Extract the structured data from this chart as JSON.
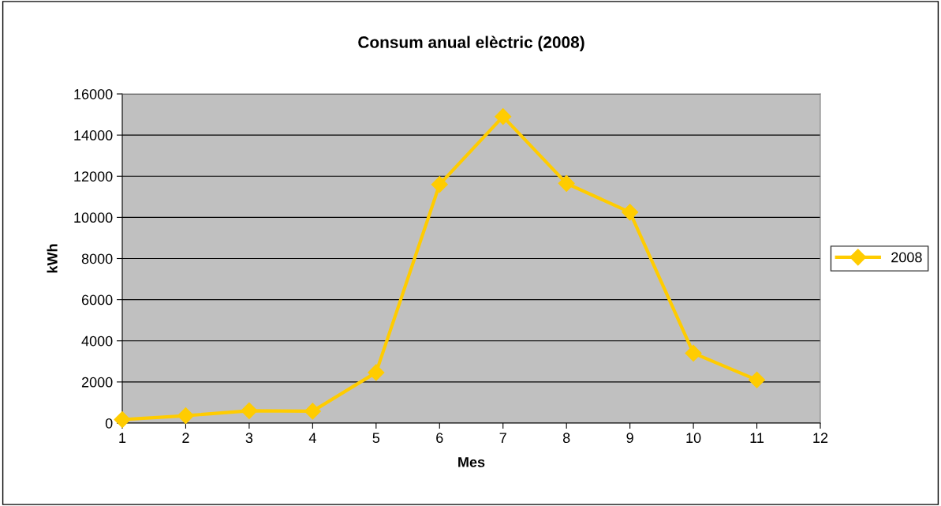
{
  "chart_data": {
    "type": "line",
    "title": "Consum anual elèctric (2008)",
    "xlabel": "Mes",
    "ylabel": "kWh",
    "x": [
      1,
      2,
      3,
      4,
      5,
      6,
      7,
      8,
      9,
      10,
      11
    ],
    "series": [
      {
        "name": "2008",
        "color": "#ffcc00",
        "values": [
          170,
          360,
          600,
          580,
          2460,
          11600,
          14900,
          11650,
          10250,
          3400,
          2100
        ]
      }
    ],
    "xlim": [
      1,
      12
    ],
    "xticks": [
      1,
      2,
      3,
      4,
      5,
      6,
      7,
      8,
      9,
      10,
      11,
      12
    ],
    "ylim": [
      0,
      16000
    ],
    "yticks": [
      0,
      2000,
      4000,
      6000,
      8000,
      10000,
      12000,
      14000,
      16000
    ],
    "grid": "y",
    "legend": "right",
    "marker": "diamond",
    "line_style": "solid"
  }
}
